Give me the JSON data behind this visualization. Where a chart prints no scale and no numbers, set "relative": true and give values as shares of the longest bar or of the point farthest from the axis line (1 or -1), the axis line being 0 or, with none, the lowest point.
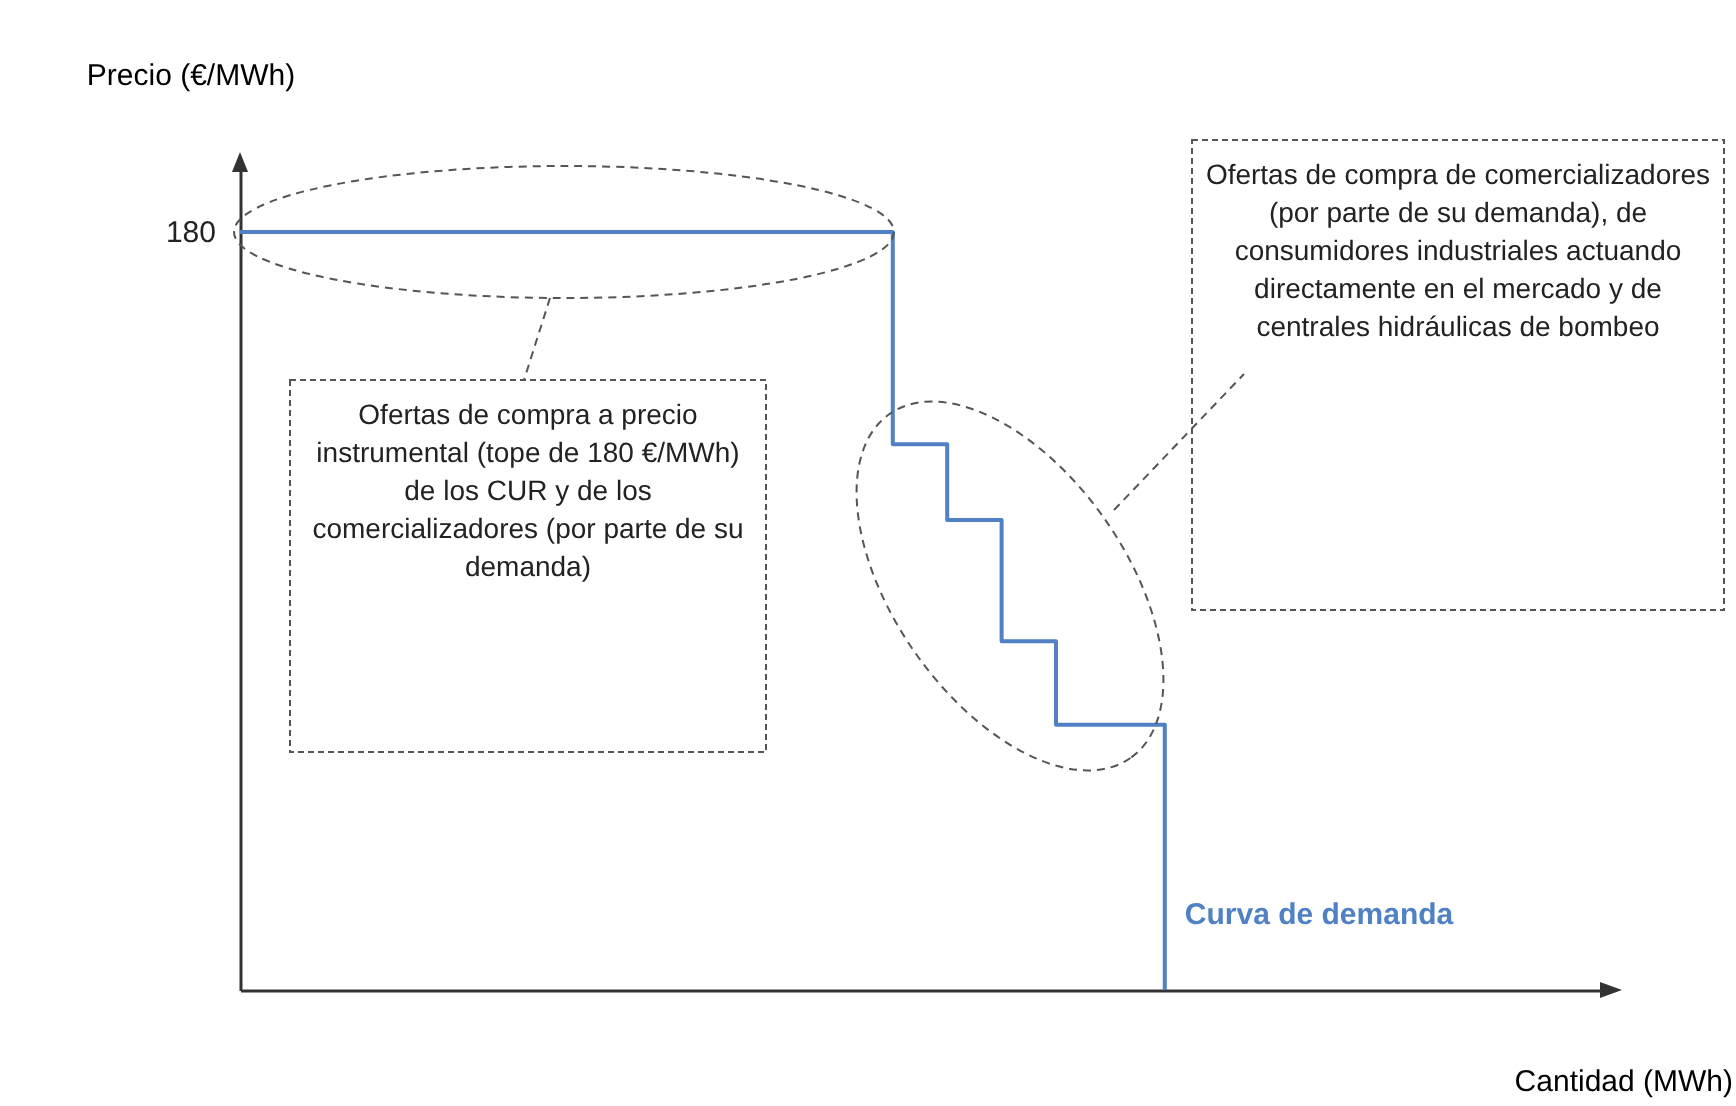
{
  "chart_data": {
    "type": "step",
    "relative": true,
    "xlabel": "Cantidad (MWh)",
    "ylabel": "Precio (€/MWh)",
    "categories": [
      null,
      null,
      null,
      null,
      null,
      null,
      null,
      null,
      null,
      null,
      null,
      null,
      null,
      null,
      null,
      null,
      null,
      null,
      null,
      null,
      null,
      null,
      null,
      null,
      null,
      null
    ],
    "series": [
      {
        "name": "Curva de demanda",
        "color": "#4f81c4",
        "values": [
          1,
          1,
          1,
          1,
          1,
          1,
          1,
          1,
          1,
          1,
          1,
          1,
          0.72,
          0.62,
          0.46,
          0.35,
          0.35,
          0,
          null,
          null,
          null,
          null,
          null,
          null,
          null,
          null
        ]
      }
    ],
    "annotations": [
      "180",
      "Ofertas de compra a precio instrumental (tope de 180 €/MWh) de los CUR y de los comercializadores (por parte de su demanda)",
      "Ofertas de compra de comercializadores (por parte de su demanda), de consumidores industriales actuando directamente en el mercado y de centrales hidráulicas de bombeo"
    ]
  }
}
